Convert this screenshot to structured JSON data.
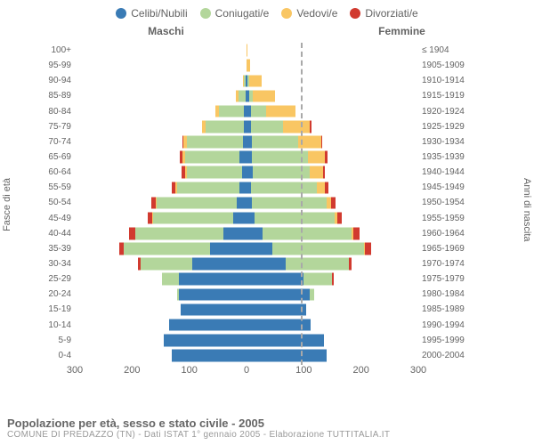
{
  "legend": [
    {
      "label": "Celibi/Nubili",
      "color": "#3a7bb5"
    },
    {
      "label": "Coniugati/e",
      "color": "#b3d69b"
    },
    {
      "label": "Vedovi/e",
      "color": "#f9c663"
    },
    {
      "label": "Divorziati/e",
      "color": "#d13a2f"
    }
  ],
  "headers": {
    "male": "Maschi",
    "female": "Femmine"
  },
  "axis": {
    "left_title": "Fasce di età",
    "right_title": "Anni di nascita",
    "x_ticks": [
      300,
      200,
      100,
      0,
      100,
      200,
      300
    ],
    "x_max": 300
  },
  "footer": {
    "title": "Popolazione per età, sesso e stato civile - 2005",
    "subtitle": "COMUNE DI PREDAZZO (TN) - Dati ISTAT 1° gennaio 2005 - Elaborazione TUTTITALIA.IT"
  },
  "colors": {
    "single": "#3a7bb5",
    "married": "#b3d69b",
    "widowed": "#f9c663",
    "divorced": "#d13a2f",
    "text": "#636363",
    "bg": "#ffffff"
  },
  "rows": [
    {
      "age": "100+",
      "year": "≤ 1904",
      "m": [
        0,
        0,
        0,
        0
      ],
      "f": [
        0,
        0,
        1,
        0
      ]
    },
    {
      "age": "95-99",
      "year": "1905-1909",
      "m": [
        0,
        0,
        0,
        0
      ],
      "f": [
        0,
        0,
        6,
        0
      ]
    },
    {
      "age": "90-94",
      "year": "1910-1914",
      "m": [
        2,
        3,
        2,
        0
      ],
      "f": [
        1,
        3,
        22,
        0
      ]
    },
    {
      "age": "85-89",
      "year": "1915-1919",
      "m": [
        2,
        12,
        4,
        0
      ],
      "f": [
        4,
        7,
        38,
        0
      ]
    },
    {
      "age": "80-84",
      "year": "1920-1924",
      "m": [
        4,
        45,
        6,
        0
      ],
      "f": [
        7,
        27,
        52,
        0
      ]
    },
    {
      "age": "75-79",
      "year": "1925-1929",
      "m": [
        5,
        66,
        6,
        0
      ],
      "f": [
        8,
        55,
        48,
        2
      ]
    },
    {
      "age": "70-74",
      "year": "1930-1934",
      "m": [
        6,
        98,
        6,
        2
      ],
      "f": [
        10,
        80,
        40,
        2
      ]
    },
    {
      "age": "65-69",
      "year": "1935-1939",
      "m": [
        12,
        95,
        5,
        4
      ],
      "f": [
        9,
        98,
        30,
        4
      ]
    },
    {
      "age": "60-64",
      "year": "1940-1944",
      "m": [
        8,
        96,
        3,
        6
      ],
      "f": [
        11,
        100,
        22,
        4
      ]
    },
    {
      "age": "55-59",
      "year": "1945-1949",
      "m": [
        12,
        110,
        3,
        6
      ],
      "f": [
        8,
        115,
        14,
        6
      ]
    },
    {
      "age": "50-54",
      "year": "1950-1954",
      "m": [
        17,
        140,
        2,
        8
      ],
      "f": [
        10,
        130,
        8,
        8
      ]
    },
    {
      "age": "45-49",
      "year": "1955-1959",
      "m": [
        24,
        140,
        1,
        8
      ],
      "f": [
        14,
        140,
        5,
        8
      ]
    },
    {
      "age": "40-44",
      "year": "1960-1964",
      "m": [
        40,
        155,
        0,
        10
      ],
      "f": [
        28,
        155,
        3,
        12
      ]
    },
    {
      "age": "35-39",
      "year": "1965-1969",
      "m": [
        64,
        150,
        0,
        8
      ],
      "f": [
        45,
        160,
        2,
        10
      ]
    },
    {
      "age": "30-34",
      "year": "1970-1974",
      "m": [
        95,
        90,
        0,
        4
      ],
      "f": [
        68,
        110,
        0,
        6
      ]
    },
    {
      "age": "25-29",
      "year": "1975-1979",
      "m": [
        118,
        30,
        0,
        0
      ],
      "f": [
        100,
        50,
        0,
        2
      ]
    },
    {
      "age": "20-24",
      "year": "1980-1984",
      "m": [
        118,
        3,
        0,
        0
      ],
      "f": [
        110,
        8,
        0,
        0
      ]
    },
    {
      "age": "15-19",
      "year": "1985-1989",
      "m": [
        115,
        0,
        0,
        0
      ],
      "f": [
        104,
        0,
        0,
        0
      ]
    },
    {
      "age": "10-14",
      "year": "1990-1994",
      "m": [
        135,
        0,
        0,
        0
      ],
      "f": [
        112,
        0,
        0,
        0
      ]
    },
    {
      "age": "5-9",
      "year": "1995-1999",
      "m": [
        145,
        0,
        0,
        0
      ],
      "f": [
        135,
        0,
        0,
        0
      ]
    },
    {
      "age": "0-4",
      "year": "2000-2004",
      "m": [
        130,
        0,
        0,
        0
      ],
      "f": [
        140,
        0,
        0,
        0
      ]
    }
  ]
}
